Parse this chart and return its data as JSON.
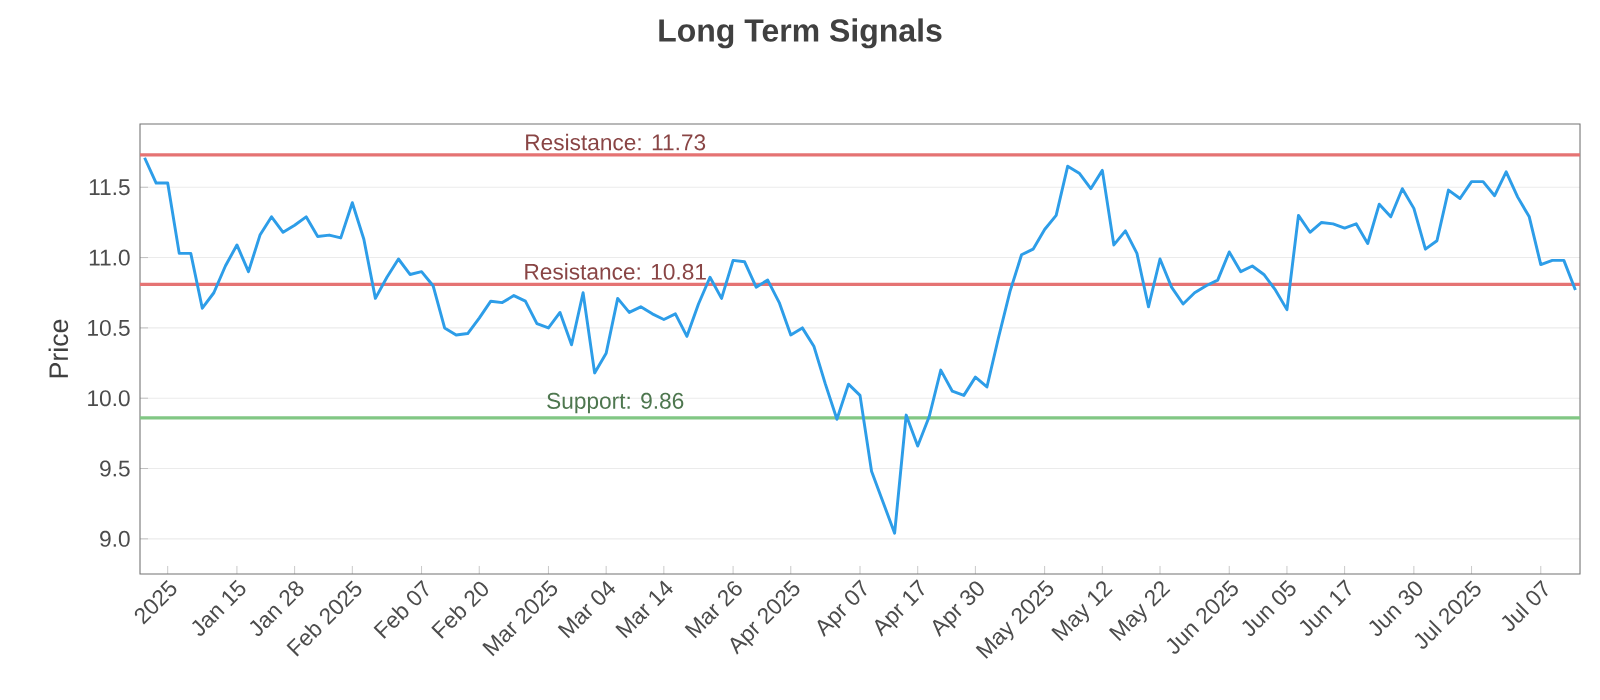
{
  "chart_data": {
    "type": "line",
    "title": "Long Term Signals",
    "ylabel": "Price",
    "categories": [
      null,
      null,
      "2025",
      null,
      null,
      null,
      null,
      null,
      "Jan 15",
      null,
      null,
      null,
      null,
      "Jan 28",
      null,
      null,
      null,
      null,
      "Feb 2025",
      null,
      null,
      null,
      null,
      null,
      "Feb 07",
      null,
      null,
      null,
      null,
      "Feb 20",
      null,
      null,
      null,
      null,
      null,
      "Mar 2025",
      null,
      null,
      null,
      null,
      "Mar 04",
      null,
      null,
      null,
      null,
      "Mar 14",
      null,
      null,
      null,
      null,
      null,
      "Mar 26",
      null,
      null,
      null,
      null,
      "Apr 2025",
      null,
      null,
      null,
      null,
      null,
      "Apr 07",
      null,
      null,
      null,
      null,
      "Apr 17",
      null,
      null,
      null,
      null,
      "Apr 30",
      null,
      null,
      null,
      null,
      null,
      "May 2025",
      null,
      null,
      null,
      null,
      "May 12",
      null,
      null,
      null,
      null,
      "May 22",
      null,
      null,
      null,
      null,
      null,
      "Jun 2025",
      null,
      null,
      null,
      null,
      "Jun 05",
      null,
      null,
      null,
      null,
      "Jun 17",
      null,
      null,
      null,
      null,
      null,
      "Jun 30",
      null,
      null,
      null,
      null,
      "Jul 2025",
      null,
      null,
      null,
      null,
      null,
      "Jul 07",
      null,
      null,
      null
    ],
    "series": [
      {
        "color": "#2d9de8",
        "values": [
          11.71,
          11.53,
          11.53,
          11.03,
          11.03,
          10.64,
          10.75,
          10.94,
          11.09,
          10.9,
          11.16,
          11.29,
          11.18,
          11.23,
          11.29,
          11.15,
          11.16,
          11.14,
          11.39,
          11.13,
          10.71,
          10.86,
          10.99,
          10.88,
          10.9,
          10.8,
          10.5,
          10.45,
          10.46,
          10.57,
          10.69,
          10.68,
          10.73,
          10.69,
          10.53,
          10.5,
          10.61,
          10.38,
          10.75,
          10.18,
          10.32,
          10.71,
          10.61,
          10.65,
          10.6,
          10.56,
          10.6,
          10.44,
          10.67,
          10.86,
          10.71,
          10.98,
          10.97,
          10.79,
          10.84,
          10.68,
          10.45,
          10.5,
          10.37,
          10.1,
          9.85,
          10.1,
          10.02,
          9.48,
          9.26,
          9.04,
          9.88,
          9.66,
          9.87,
          10.2,
          10.05,
          10.02,
          10.15,
          10.08,
          10.43,
          10.76,
          11.02,
          11.06,
          11.2,
          11.3,
          11.65,
          11.6,
          11.49,
          11.62,
          11.09,
          11.19,
          11.03,
          10.65,
          10.99,
          10.79,
          10.67,
          10.75,
          10.8,
          10.84,
          11.04,
          10.9,
          10.94,
          10.88,
          10.77,
          10.63,
          11.3,
          11.18,
          11.25,
          11.24,
          11.21,
          11.24,
          11.1,
          11.38,
          11.29,
          11.49,
          11.35,
          11.06,
          11.12,
          11.48,
          11.42,
          11.54,
          11.54,
          11.44,
          11.61,
          11.43,
          11.29,
          10.95,
          10.98,
          10.98,
          10.77
        ]
      }
    ],
    "ylim": [
      8.75,
      11.95
    ],
    "yticks": [
      {
        "value": 9,
        "label": "9.0"
      },
      9.5,
      {
        "value": 10,
        "label": "10.0"
      },
      10.5,
      {
        "value": 11,
        "label": "11.0"
      },
      11.5
    ],
    "ref_lines": [
      {
        "axis": "y",
        "value": 11.73,
        "label": "Resistance: 11.73",
        "color": "#e57373"
      },
      {
        "axis": "y",
        "value": 10.81,
        "label": "Resistance: 10.81",
        "color": "#e57373"
      },
      {
        "axis": "y",
        "value": 9.86,
        "label": "Support: 9.86",
        "color": "#81c784"
      }
    ],
    "grid": "y",
    "marker": "none",
    "line_style": "solid"
  }
}
